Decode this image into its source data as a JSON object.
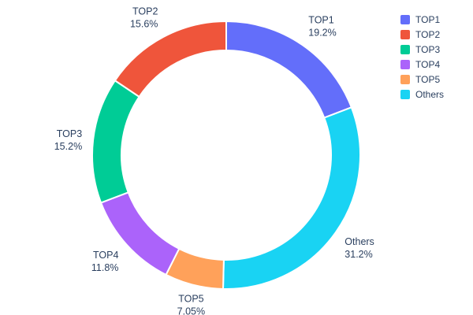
{
  "chart_data": {
    "type": "pie",
    "subtype": "donut",
    "title": "",
    "hole": 0.78,
    "labels": [
      "TOP1",
      "TOP2",
      "TOP3",
      "TOP4",
      "TOP5",
      "Others"
    ],
    "values": [
      19.2,
      15.6,
      15.2,
      11.8,
      7.05,
      31.2
    ],
    "percent_labels": [
      "19.2%",
      "15.6%",
      "15.2%",
      "11.8%",
      "7.05%",
      "31.2%"
    ],
    "colors": [
      "#636EFA",
      "#EF553B",
      "#00CC96",
      "#AB63FA",
      "#FFA15A",
      "#19D3F3"
    ],
    "clockwise_order_from_top": [
      0,
      5,
      4,
      3,
      2,
      1
    ],
    "legend": {
      "position": "top-right",
      "items": [
        "TOP1",
        "TOP2",
        "TOP3",
        "TOP4",
        "TOP5",
        "Others"
      ]
    },
    "text_color": "#2a3f5f",
    "separator_color": "#ffffff"
  }
}
